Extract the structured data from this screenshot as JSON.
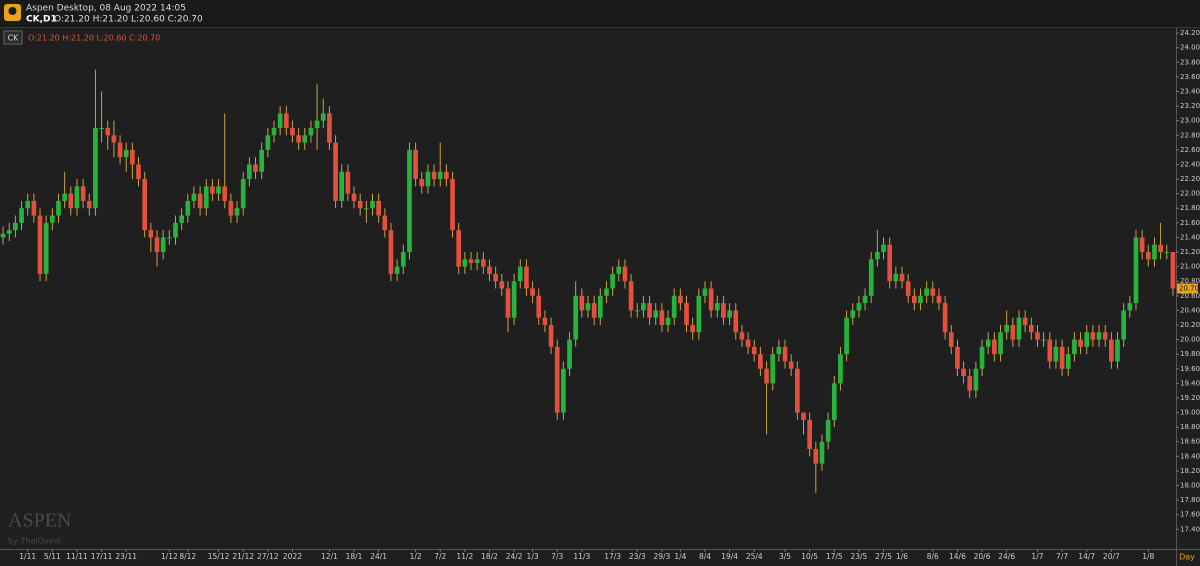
{
  "header": {
    "title": "Aspen Desktop, 08 Aug 2022 14:05",
    "symbol": "CK,D1",
    "ohlc": "O:21.20 H:21.20 L:20.60 C:20.70"
  },
  "chart_data": {
    "type": "candlestick",
    "legend_symbol": "CK",
    "timeframe": "Day",
    "up_color": "#26b53c",
    "down_color": "#e4503b",
    "wick_color": "#c9a24a",
    "categories": [
      null,
      null,
      null,
      null,
      "1/11",
      null,
      null,
      null,
      "5/11",
      null,
      null,
      null,
      "11/11",
      null,
      null,
      null,
      "17/11",
      null,
      null,
      null,
      "23/11",
      null,
      null,
      null,
      null,
      null,
      null,
      "1/12",
      null,
      null,
      "8/12",
      null,
      null,
      null,
      null,
      "15/12",
      null,
      null,
      null,
      "21/12",
      null,
      null,
      null,
      "27/12",
      null,
      null,
      null,
      "2022",
      null,
      null,
      null,
      null,
      null,
      "12/1",
      null,
      null,
      null,
      "18/1",
      null,
      null,
      null,
      "24/1",
      null,
      null,
      null,
      null,
      null,
      "1/2",
      null,
      null,
      null,
      "7/2",
      null,
      null,
      null,
      "11/2",
      null,
      null,
      null,
      "18/2",
      null,
      null,
      null,
      "24/2",
      null,
      null,
      "1/3",
      null,
      null,
      null,
      "7/3",
      null,
      null,
      null,
      "11/3",
      null,
      null,
      null,
      null,
      "17/3",
      null,
      null,
      null,
      "23/3",
      null,
      null,
      null,
      "29/3",
      null,
      null,
      "1/4",
      null,
      null,
      null,
      "8/4",
      null,
      null,
      null,
      "19/4",
      null,
      null,
      null,
      "25/4",
      null,
      null,
      null,
      null,
      "3/5",
      null,
      null,
      null,
      "10/5",
      null,
      null,
      null,
      "17/5",
      null,
      null,
      null,
      "23/5",
      null,
      null,
      null,
      "27/5",
      null,
      null,
      "1/6",
      null,
      null,
      null,
      null,
      "8/6",
      null,
      null,
      null,
      "14/6",
      null,
      null,
      null,
      "20/6",
      null,
      null,
      null,
      "24/6",
      null,
      null,
      null,
      null,
      "1/7",
      null,
      null,
      null,
      "7/7",
      null,
      null,
      null,
      "14/7",
      null,
      null,
      null,
      "20/7",
      null,
      null,
      null,
      null,
      null,
      "1/8",
      null,
      null,
      null,
      null
    ],
    "open": [
      21.4,
      21.45,
      21.5,
      21.6,
      21.8,
      21.9,
      21.7,
      20.9,
      21.6,
      21.7,
      21.9,
      22.0,
      21.8,
      22.1,
      21.9,
      21.8,
      22.9,
      22.9,
      22.8,
      22.7,
      22.5,
      22.6,
      22.4,
      22.2,
      21.5,
      21.4,
      21.2,
      21.4,
      21.4,
      21.6,
      21.7,
      21.9,
      22.0,
      21.8,
      22.1,
      22.0,
      22.1,
      21.9,
      21.7,
      21.8,
      22.2,
      22.4,
      22.3,
      22.6,
      22.8,
      22.9,
      23.1,
      22.9,
      22.8,
      22.7,
      22.8,
      22.9,
      23.0,
      23.1,
      22.7,
      21.9,
      22.3,
      22.0,
      21.9,
      21.8,
      21.8,
      21.9,
      21.7,
      21.5,
      20.9,
      21.0,
      21.2,
      22.6,
      22.2,
      22.1,
      22.3,
      22.2,
      22.3,
      22.2,
      21.5,
      21.0,
      21.1,
      21.05,
      21.1,
      21.0,
      20.9,
      20.8,
      20.7,
      20.3,
      20.8,
      21.0,
      20.7,
      20.6,
      20.3,
      20.2,
      19.9,
      19.0,
      19.6,
      20.0,
      20.6,
      20.4,
      20.5,
      20.3,
      20.6,
      20.7,
      20.9,
      21.0,
      20.8,
      20.4,
      20.4,
      20.5,
      20.3,
      20.4,
      20.2,
      20.3,
      20.6,
      20.5,
      20.2,
      20.1,
      20.6,
      20.7,
      20.4,
      20.5,
      20.3,
      20.4,
      20.1,
      20.0,
      19.9,
      19.8,
      19.6,
      19.4,
      19.8,
      19.9,
      19.7,
      19.6,
      19.0,
      18.9,
      18.5,
      18.3,
      18.6,
      18.9,
      19.4,
      19.8,
      20.3,
      20.4,
      20.5,
      20.6,
      21.1,
      21.2,
      21.3,
      20.8,
      20.9,
      20.8,
      20.6,
      20.5,
      20.6,
      20.7,
      20.6,
      20.5,
      20.1,
      19.9,
      19.6,
      19.5,
      19.3,
      19.6,
      19.9,
      20.0,
      19.8,
      20.1,
      20.2,
      20.0,
      20.3,
      20.2,
      20.1,
      20.0,
      20.0,
      19.7,
      19.9,
      19.6,
      19.8,
      20.0,
      19.9,
      20.1,
      20.0,
      20.1,
      20.0,
      19.7,
      20.0,
      20.4,
      20.5,
      21.4,
      21.2,
      21.1,
      21.3,
      21.2,
      21.2
    ],
    "high": [
      21.55,
      21.6,
      21.7,
      21.9,
      22.0,
      22.0,
      21.8,
      21.7,
      21.8,
      22.0,
      22.3,
      22.1,
      22.2,
      22.2,
      22.0,
      23.7,
      23.4,
      23.0,
      23.0,
      22.8,
      22.7,
      22.7,
      22.5,
      22.3,
      21.6,
      21.5,
      21.5,
      21.5,
      21.7,
      21.8,
      22.0,
      22.1,
      22.1,
      22.2,
      22.2,
      22.2,
      23.1,
      22.0,
      21.9,
      22.3,
      22.5,
      22.5,
      22.7,
      22.9,
      23.0,
      23.2,
      23.2,
      23.0,
      22.9,
      22.9,
      23.0,
      23.5,
      23.3,
      23.2,
      22.8,
      22.4,
      22.4,
      22.1,
      22.0,
      21.9,
      22.0,
      22.0,
      21.8,
      21.6,
      21.1,
      21.3,
      22.7,
      22.7,
      22.3,
      22.4,
      22.4,
      22.7,
      22.4,
      22.3,
      21.6,
      21.2,
      21.2,
      21.2,
      21.2,
      21.1,
      21.0,
      20.9,
      20.8,
      20.9,
      21.1,
      21.1,
      20.8,
      20.7,
      20.4,
      20.3,
      20.0,
      19.7,
      20.1,
      20.8,
      20.7,
      20.6,
      20.6,
      20.7,
      20.8,
      21.0,
      21.1,
      21.1,
      20.9,
      20.5,
      20.6,
      20.6,
      20.5,
      20.5,
      20.4,
      20.7,
      20.7,
      20.6,
      20.3,
      20.7,
      20.8,
      20.8,
      20.6,
      20.6,
      20.5,
      20.5,
      20.2,
      20.1,
      20.0,
      19.9,
      19.7,
      19.9,
      20.0,
      20.0,
      19.8,
      19.7,
      19.0,
      19.0,
      18.6,
      18.7,
      19.0,
      19.5,
      19.9,
      20.4,
      20.5,
      20.6,
      20.7,
      21.2,
      21.5,
      21.4,
      21.4,
      21.0,
      21.0,
      20.9,
      20.7,
      20.7,
      20.8,
      20.8,
      20.7,
      20.6,
      20.2,
      20.0,
      19.7,
      19.6,
      19.7,
      20.0,
      20.1,
      20.1,
      20.2,
      20.4,
      20.3,
      20.4,
      20.4,
      20.3,
      20.2,
      20.1,
      20.1,
      20.0,
      20.0,
      19.9,
      20.1,
      20.1,
      20.2,
      20.2,
      20.2,
      20.2,
      20.1,
      20.1,
      20.5,
      20.6,
      21.5,
      21.5,
      21.3,
      21.4,
      21.6,
      21.3,
      21.2
    ],
    "low": [
      21.3,
      21.35,
      21.4,
      21.5,
      21.7,
      21.6,
      20.8,
      20.8,
      21.5,
      21.6,
      21.8,
      21.7,
      21.7,
      21.8,
      21.7,
      21.7,
      22.7,
      22.6,
      22.5,
      22.4,
      22.3,
      22.2,
      22.1,
      21.4,
      21.2,
      21.0,
      21.1,
      21.3,
      21.3,
      21.5,
      21.6,
      21.8,
      21.7,
      21.7,
      21.9,
      21.9,
      21.8,
      21.6,
      21.6,
      21.7,
      22.1,
      22.2,
      22.2,
      22.5,
      22.7,
      22.8,
      22.8,
      22.7,
      22.6,
      22.6,
      22.7,
      22.6,
      22.9,
      22.6,
      21.8,
      21.8,
      21.9,
      21.8,
      21.7,
      21.6,
      21.7,
      21.6,
      21.4,
      20.8,
      20.8,
      20.9,
      21.1,
      22.1,
      22.0,
      22.0,
      22.1,
      22.1,
      22.1,
      21.4,
      20.9,
      20.9,
      20.95,
      20.95,
      20.9,
      20.8,
      20.7,
      20.6,
      20.1,
      20.2,
      20.7,
      20.6,
      20.5,
      20.2,
      20.1,
      19.8,
      18.9,
      18.9,
      19.5,
      19.9,
      20.3,
      20.3,
      20.2,
      20.2,
      20.5,
      20.6,
      20.8,
      20.7,
      20.3,
      20.3,
      20.3,
      20.2,
      20.2,
      20.1,
      20.1,
      20.2,
      20.4,
      20.1,
      20.0,
      20.0,
      20.5,
      20.3,
      20.3,
      20.2,
      20.2,
      20.0,
      19.9,
      19.8,
      19.7,
      19.5,
      18.7,
      19.3,
      19.7,
      19.6,
      19.5,
      18.9,
      18.7,
      18.4,
      17.9,
      18.2,
      18.5,
      18.8,
      19.3,
      19.7,
      20.2,
      20.3,
      20.4,
      20.5,
      21.0,
      21.1,
      20.7,
      20.7,
      20.7,
      20.5,
      20.4,
      20.4,
      20.5,
      20.5,
      20.4,
      20.0,
      19.8,
      19.5,
      19.4,
      19.2,
      19.2,
      19.5,
      19.8,
      19.7,
      19.7,
      20.0,
      19.9,
      19.9,
      20.1,
      20.0,
      19.9,
      19.9,
      19.6,
      19.6,
      19.5,
      19.5,
      19.7,
      19.8,
      19.8,
      19.9,
      19.9,
      19.9,
      19.6,
      19.6,
      19.9,
      20.3,
      20.4,
      21.1,
      21.0,
      21.0,
      21.1,
      21.1,
      20.6
    ],
    "close": [
      21.45,
      21.5,
      21.6,
      21.8,
      21.9,
      21.7,
      20.9,
      21.6,
      21.7,
      21.9,
      22.0,
      21.8,
      22.1,
      21.9,
      21.8,
      22.9,
      22.9,
      22.8,
      22.7,
      22.5,
      22.6,
      22.4,
      22.2,
      21.5,
      21.4,
      21.2,
      21.4,
      21.4,
      21.6,
      21.7,
      21.9,
      22.0,
      21.8,
      22.1,
      22.0,
      22.1,
      21.9,
      21.7,
      21.8,
      22.2,
      22.4,
      22.3,
      22.6,
      22.8,
      22.9,
      23.1,
      22.9,
      22.8,
      22.7,
      22.8,
      22.9,
      23.0,
      23.1,
      22.7,
      21.9,
      22.3,
      22.0,
      21.9,
      21.8,
      21.8,
      21.9,
      21.7,
      21.5,
      20.9,
      21.0,
      21.2,
      22.6,
      22.2,
      22.1,
      22.3,
      22.2,
      22.3,
      22.2,
      21.5,
      21.0,
      21.1,
      21.05,
      21.1,
      21.0,
      20.9,
      20.8,
      20.7,
      20.3,
      20.8,
      21.0,
      20.7,
      20.6,
      20.3,
      20.2,
      19.9,
      19.0,
      19.6,
      20.0,
      20.6,
      20.4,
      20.5,
      20.3,
      20.6,
      20.7,
      20.9,
      21.0,
      20.8,
      20.4,
      20.4,
      20.5,
      20.3,
      20.4,
      20.2,
      20.3,
      20.6,
      20.5,
      20.2,
      20.1,
      20.6,
      20.7,
      20.4,
      20.5,
      20.3,
      20.4,
      20.1,
      20.0,
      19.9,
      19.8,
      19.6,
      19.4,
      19.8,
      19.9,
      19.7,
      19.6,
      19.0,
      18.9,
      18.5,
      18.3,
      18.6,
      18.9,
      19.4,
      19.8,
      20.3,
      20.4,
      20.5,
      20.6,
      21.1,
      21.2,
      21.3,
      20.8,
      20.9,
      20.8,
      20.6,
      20.5,
      20.6,
      20.7,
      20.6,
      20.5,
      20.1,
      19.9,
      19.6,
      19.5,
      19.3,
      19.6,
      19.9,
      20.0,
      19.8,
      20.1,
      20.2,
      20.0,
      20.3,
      20.2,
      20.1,
      20.0,
      20.0,
      19.7,
      19.9,
      19.6,
      19.8,
      20.0,
      19.9,
      20.1,
      20.0,
      20.1,
      20.0,
      19.7,
      20.0,
      20.4,
      20.5,
      21.4,
      21.2,
      21.1,
      21.3,
      21.2,
      21.2,
      20.7
    ],
    "ylim": [
      17.13,
      24.27
    ],
    "yticks": [
      {
        "value": 17.4,
        "label": "17.40"
      },
      {
        "value": 17.6,
        "label": "17.60"
      },
      {
        "value": 17.8,
        "label": "17.80"
      },
      {
        "value": 18.0,
        "label": "18.00"
      },
      {
        "value": 18.2,
        "label": "18.20"
      },
      {
        "value": 18.4,
        "label": "18.40"
      },
      {
        "value": 18.6,
        "label": "18.60"
      },
      {
        "value": 18.8,
        "label": "18.80"
      },
      {
        "value": 19.0,
        "label": "19.00"
      },
      {
        "value": 19.2,
        "label": "19.20"
      },
      {
        "value": 19.4,
        "label": "19.40"
      },
      {
        "value": 19.6,
        "label": "19.60"
      },
      {
        "value": 19.8,
        "label": "19.80"
      },
      {
        "value": 20.0,
        "label": "20.00"
      },
      {
        "value": 20.2,
        "label": "20.20"
      },
      {
        "value": 20.4,
        "label": "20.40"
      },
      {
        "value": 20.6,
        "label": "20.60"
      },
      {
        "value": 20.8,
        "label": "20.80"
      },
      {
        "value": 21.0,
        "label": "21.00"
      },
      {
        "value": 21.2,
        "label": "21.20"
      },
      {
        "value": 21.4,
        "label": "21.40"
      },
      {
        "value": 21.6,
        "label": "21.60"
      },
      {
        "value": 21.8,
        "label": "21.80"
      },
      {
        "value": 22.0,
        "label": "22.00"
      },
      {
        "value": 22.2,
        "label": "22.20"
      },
      {
        "value": 22.4,
        "label": "22.40"
      },
      {
        "value": 22.6,
        "label": "22.60"
      },
      {
        "value": 22.8,
        "label": "22.80"
      },
      {
        "value": 23.0,
        "label": "23.00"
      },
      {
        "value": 23.2,
        "label": "23.20"
      },
      {
        "value": 23.4,
        "label": "23.40"
      },
      {
        "value": 23.6,
        "label": "23.60"
      },
      {
        "value": 23.8,
        "label": "23.80"
      },
      {
        "value": 24.0,
        "label": "24.00"
      },
      {
        "value": 24.2,
        "label": "24.20"
      }
    ],
    "last_price": {
      "value": 20.7,
      "label": "20.70"
    }
  },
  "watermark": {
    "brand": "ASPEN",
    "by": "by ThaiQuest"
  }
}
